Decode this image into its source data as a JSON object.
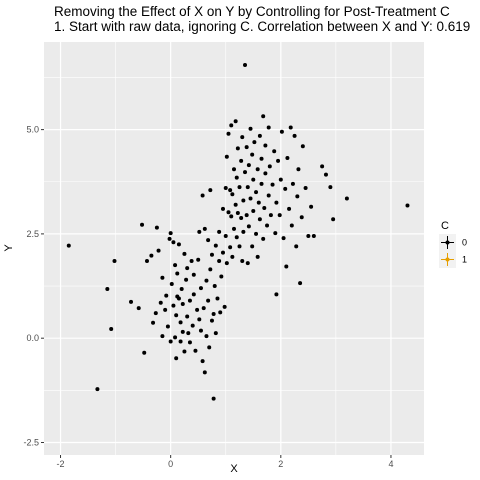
{
  "chart_data": {
    "type": "scatter",
    "title": "Removing the Effect of X on Y by Controlling for Post-Treatment C",
    "subtitle": "1. Start with raw data, ignoring C. Correlation between X and Y: 0.619",
    "xlabel": "X",
    "ylabel": "Y",
    "xlim": [
      -2.3,
      4.6
    ],
    "ylim": [
      -2.8,
      7.1
    ],
    "x_ticks": [
      -2,
      0,
      2,
      4
    ],
    "x_tick_labels": [
      "-2",
      "0",
      "2",
      "4"
    ],
    "y_ticks": [
      -2.5,
      0,
      2.5,
      5
    ],
    "y_tick_labels": [
      "-2.5",
      "0.0",
      "2.5",
      "5.0"
    ],
    "grid": true,
    "legend": {
      "title": "C",
      "position": "right",
      "items": [
        {
          "label": "0",
          "color": "#000000"
        },
        {
          "label": "1",
          "color": "#E69F00"
        }
      ]
    },
    "point_color": "#000000",
    "panel_background": "#EBEBEB",
    "grid_color": "#FFFFFF",
    "points": [
      [
        -1.85,
        2.22
      ],
      [
        -1.33,
        -1.22
      ],
      [
        -1.15,
        1.18
      ],
      [
        -1.08,
        0.22
      ],
      [
        -1.02,
        1.85
      ],
      [
        -0.72,
        0.87
      ],
      [
        -0.58,
        0.72
      ],
      [
        -0.52,
        2.72
      ],
      [
        -0.48,
        -0.35
      ],
      [
        -0.43,
        1.85
      ],
      [
        -0.35,
        1.98
      ],
      [
        -0.32,
        0.37
      ],
      [
        -0.27,
        0.6
      ],
      [
        -0.25,
        2.65
      ],
      [
        -0.22,
        2.1
      ],
      [
        -0.18,
        0.85
      ],
      [
        -0.15,
        0.05
      ],
      [
        -0.15,
        1.45
      ],
      [
        -0.1,
        0.68
      ],
      [
        -0.08,
        1.02
      ],
      [
        -0.05,
        0.28
      ],
      [
        -0.02,
        2.38
      ],
      [
        0.0,
        2.52
      ],
      [
        0.0,
        -0.08
      ],
      [
        0.02,
        1.3
      ],
      [
        0.05,
        0.78
      ],
      [
        0.05,
        2.3
      ],
      [
        0.08,
        0.02
      ],
      [
        0.08,
        1.75
      ],
      [
        0.1,
        0.55
      ],
      [
        0.1,
        -0.48
      ],
      [
        0.12,
        1.0
      ],
      [
        0.12,
        1.55
      ],
      [
        0.15,
        2.25
      ],
      [
        0.15,
        0.95
      ],
      [
        0.18,
        0.38
      ],
      [
        0.18,
        -0.08
      ],
      [
        0.2,
        1.18
      ],
      [
        0.22,
        0.15
      ],
      [
        0.22,
        0.82
      ],
      [
        0.25,
        2.02
      ],
      [
        0.25,
        -0.32
      ],
      [
        0.28,
        1.4
      ],
      [
        0.3,
        0.52
      ],
      [
        0.3,
        1.68
      ],
      [
        0.32,
        0.12
      ],
      [
        0.35,
        0.9
      ],
      [
        0.35,
        -0.1
      ],
      [
        0.38,
        1.85
      ],
      [
        0.4,
        0.3
      ],
      [
        0.42,
        1.05
      ],
      [
        0.42,
        1.52
      ],
      [
        0.45,
        -0.3
      ],
      [
        0.48,
        0.68
      ],
      [
        0.5,
        1.88
      ],
      [
        0.52,
        0.45
      ],
      [
        0.52,
        2.55
      ],
      [
        0.55,
        0.18
      ],
      [
        0.55,
        1.2
      ],
      [
        0.58,
        3.42
      ],
      [
        0.58,
        -0.55
      ],
      [
        0.6,
        0.72
      ],
      [
        0.62,
        2.62
      ],
      [
        0.62,
        -0.82
      ],
      [
        0.65,
        1.38
      ],
      [
        0.65,
        0.05
      ],
      [
        0.68,
        0.9
      ],
      [
        0.68,
        2.35
      ],
      [
        0.7,
        -0.22
      ],
      [
        0.72,
        1.65
      ],
      [
        0.72,
        3.55
      ],
      [
        0.75,
        0.42
      ],
      [
        0.75,
        2.0
      ],
      [
        0.78,
        0.58
      ],
      [
        0.78,
        -1.45
      ],
      [
        0.8,
        1.25
      ],
      [
        0.82,
        2.22
      ],
      [
        0.82,
        0.12
      ],
      [
        0.85,
        0.95
      ],
      [
        0.88,
        1.85
      ],
      [
        0.88,
        2.55
      ],
      [
        0.9,
        0.62
      ],
      [
        0.92,
        1.48
      ],
      [
        0.95,
        3.1
      ],
      [
        0.95,
        2.05
      ],
      [
        0.98,
        0.75
      ],
      [
        1.0,
        2.45
      ],
      [
        1.0,
        3.6
      ],
      [
        1.02,
        1.8
      ],
      [
        1.02,
        4.35
      ],
      [
        1.05,
        3.02
      ],
      [
        1.05,
        4.9
      ],
      [
        1.08,
        2.18
      ],
      [
        1.08,
        3.55
      ],
      [
        1.1,
        5.1
      ],
      [
        1.1,
        2.92
      ],
      [
        1.12,
        3.45
      ],
      [
        1.12,
        1.95
      ],
      [
        1.15,
        4.05
      ],
      [
        1.15,
        2.62
      ],
      [
        1.18,
        3.2
      ],
      [
        1.18,
        5.2
      ],
      [
        1.2,
        2.42
      ],
      [
        1.2,
        3.85
      ],
      [
        1.22,
        4.55
      ],
      [
        1.22,
        3.0
      ],
      [
        1.25,
        2.2
      ],
      [
        1.25,
        3.62
      ],
      [
        1.28,
        4.25
      ],
      [
        1.28,
        2.88
      ],
      [
        1.3,
        1.85
      ],
      [
        1.3,
        4.82
      ],
      [
        1.32,
        3.3
      ],
      [
        1.32,
        2.55
      ],
      [
        1.35,
        6.55
      ],
      [
        1.35,
        3.98
      ],
      [
        1.38,
        2.95
      ],
      [
        1.38,
        4.58
      ],
      [
        1.4,
        3.62
      ],
      [
        1.4,
        1.8
      ],
      [
        1.42,
        4.15
      ],
      [
        1.42,
        2.68
      ],
      [
        1.45,
        3.35
      ],
      [
        1.45,
        5.02
      ],
      [
        1.48,
        2.2
      ],
      [
        1.48,
        4.4
      ],
      [
        1.5,
        3.05
      ],
      [
        1.5,
        3.8
      ],
      [
        1.52,
        4.7
      ],
      [
        1.55,
        2.5
      ],
      [
        1.55,
        3.5
      ],
      [
        1.58,
        4.05
      ],
      [
        1.58,
        1.95
      ],
      [
        1.6,
        3.25
      ],
      [
        1.62,
        4.85
      ],
      [
        1.62,
        2.85
      ],
      [
        1.65,
        3.7
      ],
      [
        1.65,
        4.3
      ],
      [
        1.68,
        5.32
      ],
      [
        1.68,
        2.38
      ],
      [
        1.7,
        3.12
      ],
      [
        1.72,
        3.95
      ],
      [
        1.72,
        4.62
      ],
      [
        1.75,
        2.7
      ],
      [
        1.78,
        3.42
      ],
      [
        1.78,
        5.05
      ],
      [
        1.8,
        4.12
      ],
      [
        1.82,
        2.95
      ],
      [
        1.85,
        3.68
      ],
      [
        1.88,
        4.48
      ],
      [
        1.9,
        2.52
      ],
      [
        1.92,
        3.25
      ],
      [
        1.92,
        1.05
      ],
      [
        1.95,
        4.25
      ],
      [
        1.98,
        2.95
      ],
      [
        2.0,
        3.8
      ],
      [
        2.02,
        4.95
      ],
      [
        2.05,
        2.4
      ],
      [
        2.08,
        3.58
      ],
      [
        2.1,
        1.72
      ],
      [
        2.12,
        4.32
      ],
      [
        2.15,
        3.1
      ],
      [
        2.18,
        5.05
      ],
      [
        2.2,
        2.7
      ],
      [
        2.22,
        3.7
      ],
      [
        2.25,
        4.85
      ],
      [
        2.28,
        2.2
      ],
      [
        2.3,
        3.4
      ],
      [
        2.32,
        4.05
      ],
      [
        2.35,
        1.32
      ],
      [
        2.38,
        2.9
      ],
      [
        2.4,
        4.6
      ],
      [
        2.45,
        3.6
      ],
      [
        2.5,
        2.45
      ],
      [
        2.55,
        3.15
      ],
      [
        2.6,
        2.45
      ],
      [
        2.75,
        4.12
      ],
      [
        2.82,
        3.92
      ],
      [
        2.9,
        3.62
      ],
      [
        2.95,
        2.85
      ],
      [
        3.2,
        3.35
      ],
      [
        4.3,
        3.18
      ]
    ]
  }
}
